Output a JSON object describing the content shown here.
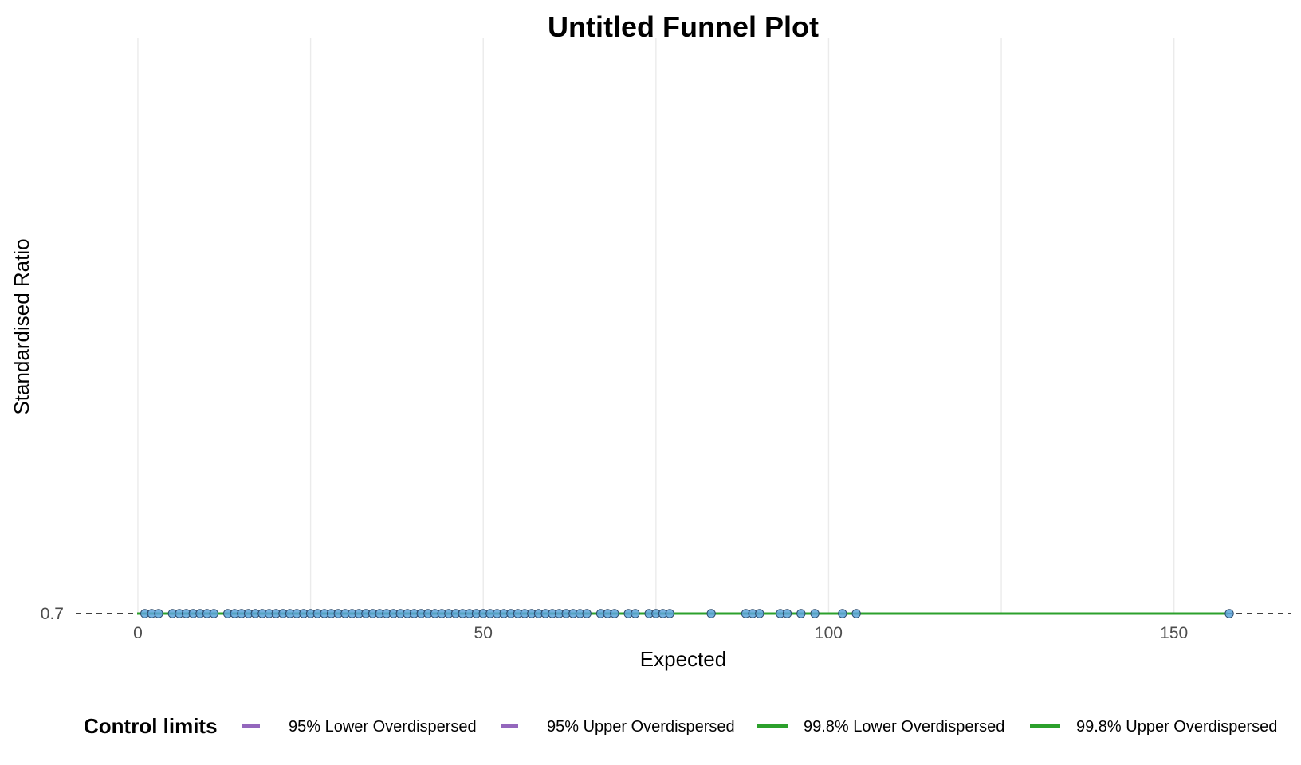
{
  "chart_data": {
    "type": "scatter",
    "title": "Untitled Funnel Plot",
    "xlabel": "Expected",
    "ylabel": "Standardised Ratio",
    "xlim": [
      -9,
      167
    ],
    "x_ticks": [
      0,
      50,
      100,
      150
    ],
    "y_ticks": [
      0.7
    ],
    "target_line": 0.7,
    "grid": {
      "vertical": true,
      "horizontal": false
    },
    "legend": {
      "title": "Control limits",
      "placement": "bottom",
      "entries": [
        {
          "label": "95% Lower Overdispersed",
          "color": "#9467bd"
        },
        {
          "label": "95% Upper Overdispersed",
          "color": "#9467bd"
        },
        {
          "label": "99.8% Lower Overdispersed",
          "color": "#2ca02c"
        },
        {
          "label": "99.8% Upper Overdispersed",
          "color": "#2ca02c"
        }
      ]
    },
    "point_color": "#5da5da",
    "point_stroke": "#2b4a6b",
    "points_x": [
      1,
      2,
      3,
      5,
      6,
      7,
      8,
      9,
      10,
      11,
      13,
      14,
      15,
      16,
      17,
      18,
      19,
      20,
      21,
      22,
      23,
      24,
      25,
      26,
      27,
      28,
      29,
      30,
      31,
      32,
      33,
      34,
      35,
      36,
      37,
      38,
      39,
      40,
      41,
      42,
      43,
      44,
      45,
      46,
      47,
      48,
      49,
      50,
      51,
      52,
      53,
      54,
      55,
      56,
      57,
      58,
      59,
      60,
      61,
      62,
      63,
      64,
      65,
      67,
      68,
      69,
      71,
      72,
      74,
      75,
      76,
      77,
      83,
      88,
      89,
      90,
      93,
      94,
      96,
      98,
      102,
      104,
      158
    ]
  }
}
